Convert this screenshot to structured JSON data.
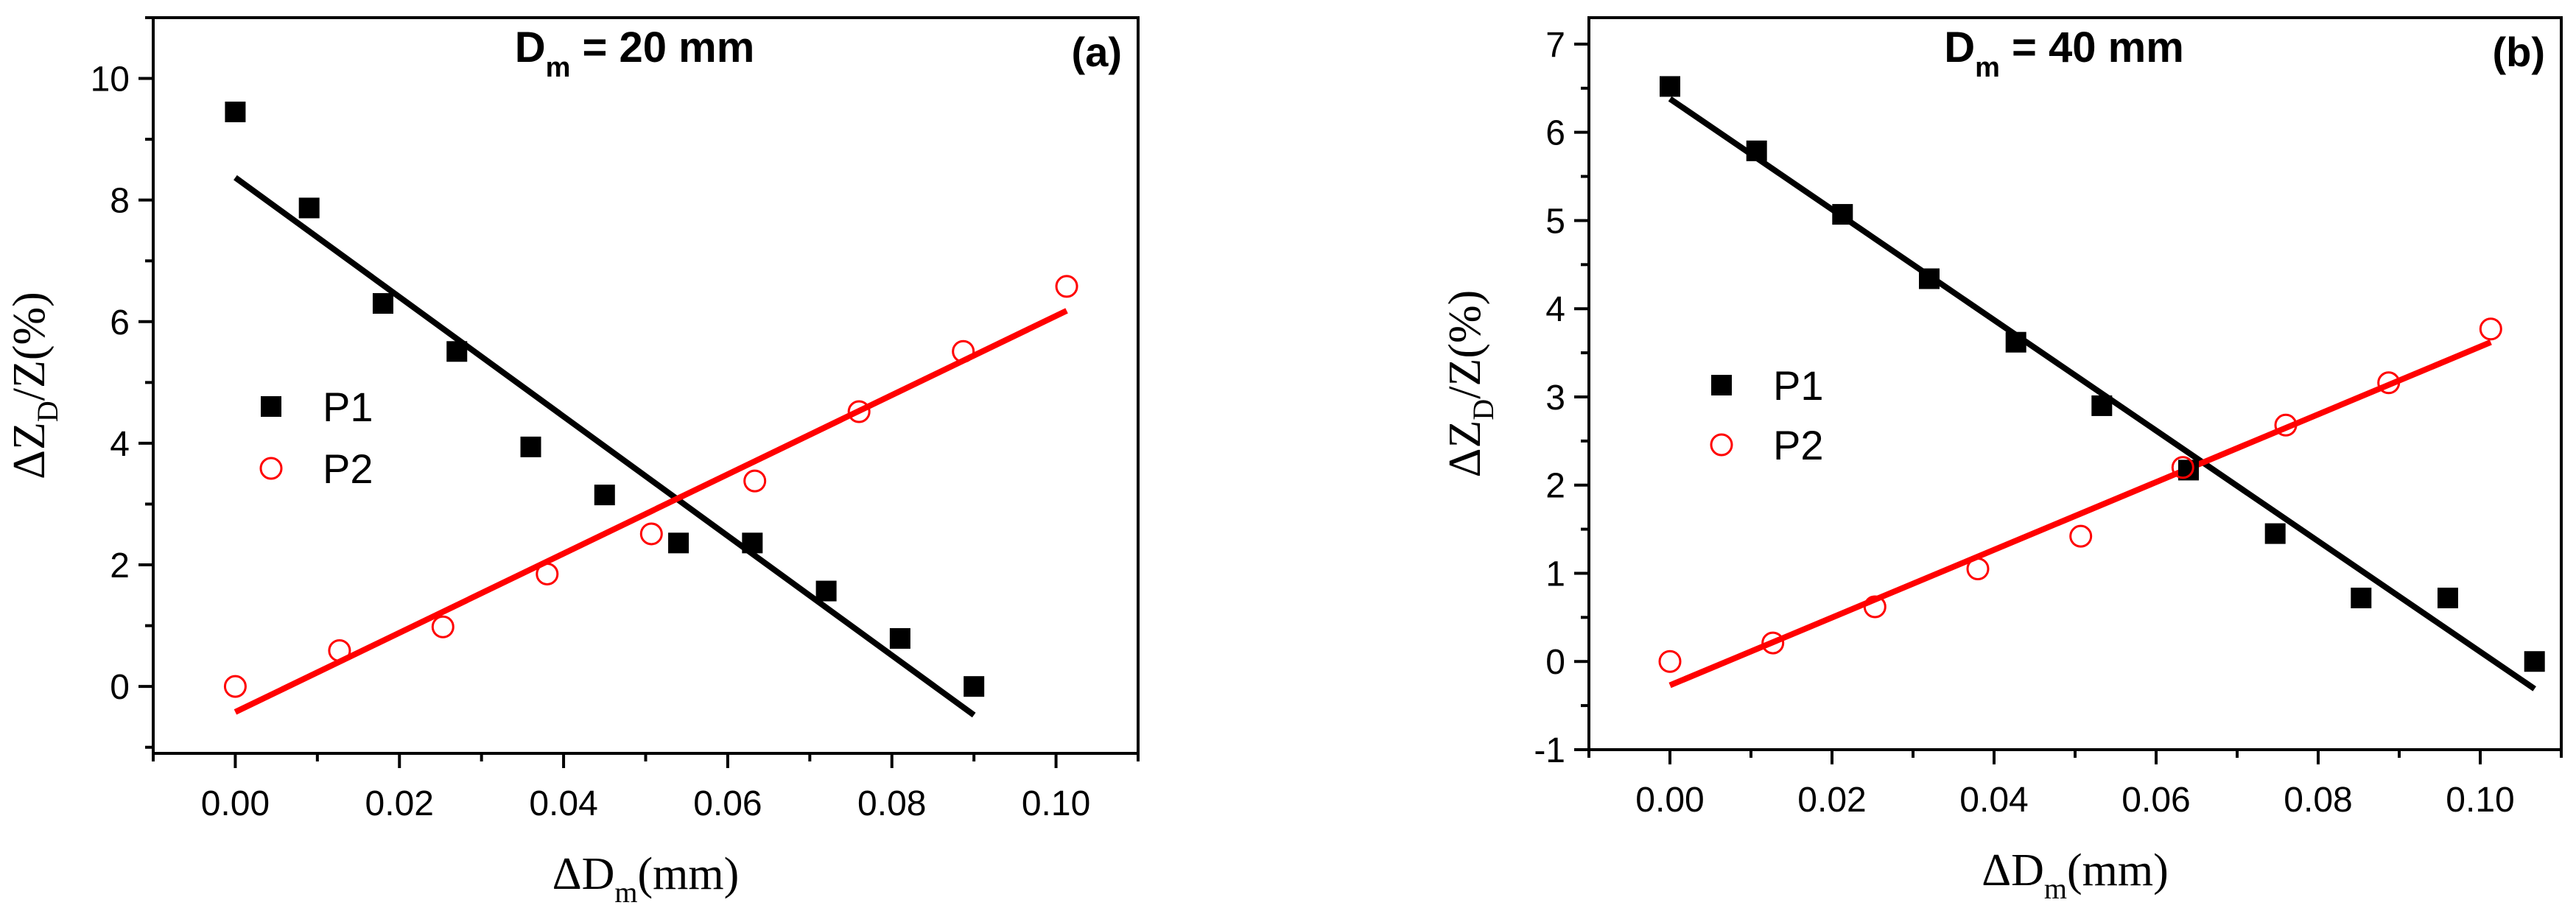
{
  "chart_data": [
    {
      "type": "scatter",
      "panel_label": "(a)",
      "title_main": "D",
      "title_sub": "m",
      "title_rest": " = 20 mm",
      "xlabel_main": "ΔD",
      "xlabel_sub": "m",
      "xlabel_rest": "(mm)",
      "ylabel_pre": "ΔZ",
      "ylabel_sub": "D",
      "ylabel_post": "/Z(%)",
      "xlim": [
        -0.01,
        0.11
      ],
      "ylim": [
        -1.1,
        11
      ],
      "xticks": [
        0.0,
        0.02,
        0.04,
        0.06,
        0.08,
        0.1
      ],
      "xtick_labels": [
        "0.00",
        "0.02",
        "0.04",
        "0.06",
        "0.08",
        "0.10"
      ],
      "yticks": [
        0,
        2,
        4,
        6,
        8,
        10
      ],
      "ytick_labels": [
        "0",
        "2",
        "4",
        "6",
        "8",
        "10"
      ],
      "legend_position": "center-left",
      "series": [
        {
          "name": "P1",
          "marker": "filled-square",
          "color": "#000000",
          "x": [
            0.0,
            0.009,
            0.018,
            0.027,
            0.036,
            0.045,
            0.054,
            0.063,
            0.072,
            0.081,
            0.09
          ],
          "y": [
            9.45,
            7.87,
            6.3,
            5.51,
            3.94,
            3.15,
            2.36,
            2.36,
            1.57,
            0.79,
            0.0
          ],
          "fit": {
            "x": [
              0.0,
              0.09
            ],
            "y": [
              8.37,
              -0.47
            ]
          }
        },
        {
          "name": "P2",
          "marker": "open-circle",
          "color": "#ff0000",
          "x": [
            0.0,
            0.0127,
            0.0253,
            0.038,
            0.0507,
            0.0633,
            0.076,
            0.0887,
            0.1013
          ],
          "y": [
            0.0,
            0.59,
            0.98,
            1.85,
            2.51,
            3.38,
            4.52,
            5.51,
            6.58
          ],
          "fit": {
            "x": [
              0.0,
              0.1013
            ],
            "y": [
              -0.42,
              6.18
            ]
          }
        }
      ]
    },
    {
      "type": "scatter",
      "panel_label": "(b)",
      "title_main": "D",
      "title_sub": "m",
      "title_rest": " = 40 mm",
      "xlabel_main": "ΔD",
      "xlabel_sub": "m",
      "xlabel_rest": "(mm)",
      "ylabel_pre": "ΔZ",
      "ylabel_sub": "D",
      "ylabel_post": "/Z(%)",
      "xlim": [
        -0.01,
        0.11
      ],
      "ylim": [
        -1,
        7.3
      ],
      "xticks": [
        0.0,
        0.02,
        0.04,
        0.06,
        0.08,
        0.1
      ],
      "xtick_labels": [
        "0.00",
        "0.02",
        "0.04",
        "0.06",
        "0.08",
        "0.10"
      ],
      "yticks": [
        -1,
        0,
        1,
        2,
        3,
        4,
        5,
        6,
        7
      ],
      "ytick_labels": [
        "-1",
        "0",
        "1",
        "2",
        "3",
        "4",
        "5",
        "6",
        "7"
      ],
      "legend_position": "center-left",
      "series": [
        {
          "name": "P1",
          "marker": "filled-square",
          "color": "#000000",
          "x": [
            0.0,
            0.0107,
            0.0213,
            0.032,
            0.0427,
            0.0533,
            0.064,
            0.0747,
            0.0853,
            0.096,
            0.1067
          ],
          "y": [
            6.52,
            5.79,
            5.07,
            4.34,
            3.62,
            2.9,
            2.17,
            1.45,
            0.72,
            0.72,
            0.0
          ],
          "fit": {
            "x": [
              0.0,
              0.1067
            ],
            "y": [
              6.38,
              -0.31
            ]
          }
        },
        {
          "name": "P2",
          "marker": "open-circle",
          "color": "#ff0000",
          "x": [
            0.0,
            0.0127,
            0.0253,
            0.038,
            0.0507,
            0.0633,
            0.076,
            0.0887,
            0.1013
          ],
          "y": [
            0.0,
            0.21,
            0.62,
            1.05,
            1.42,
            2.2,
            2.68,
            3.16,
            3.77
          ],
          "fit": {
            "x": [
              0.0,
              0.1013
            ],
            "y": [
              -0.27,
              3.62
            ]
          }
        }
      ]
    }
  ]
}
